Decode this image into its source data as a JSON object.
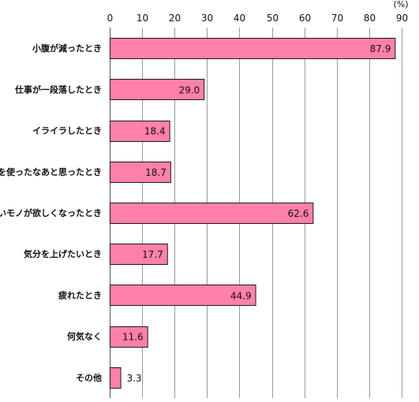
{
  "chart_data": {
    "type": "bar",
    "orientation": "horizontal",
    "categories": [
      "小腹が減ったとき",
      "仕事が一段落したとき",
      "イライラしたとき",
      "頭を使ったなあと思ったとき",
      "甘いモノが欲しくなったとき",
      "気分を上げたいとき",
      "疲れたとき",
      "何気なく",
      "その他"
    ],
    "values": [
      87.9,
      29.0,
      18.4,
      18.7,
      62.6,
      17.7,
      44.9,
      11.6,
      3.3
    ],
    "value_labels": [
      "87.9",
      "29.0",
      "18.4",
      "18.7",
      "62.6",
      "17.7",
      "44.9",
      "11.6",
      "3.3"
    ],
    "x_ticks": [
      0,
      10,
      20,
      30,
      40,
      50,
      60,
      70,
      80,
      90
    ],
    "xlim": [
      0,
      90
    ],
    "unit_label": "(%)",
    "x_axis_position": "top",
    "grid": true,
    "bar_color": "#ff80a8",
    "bar_edge_color": "#1a1a1a",
    "grid_color": "#9a9a9a"
  }
}
